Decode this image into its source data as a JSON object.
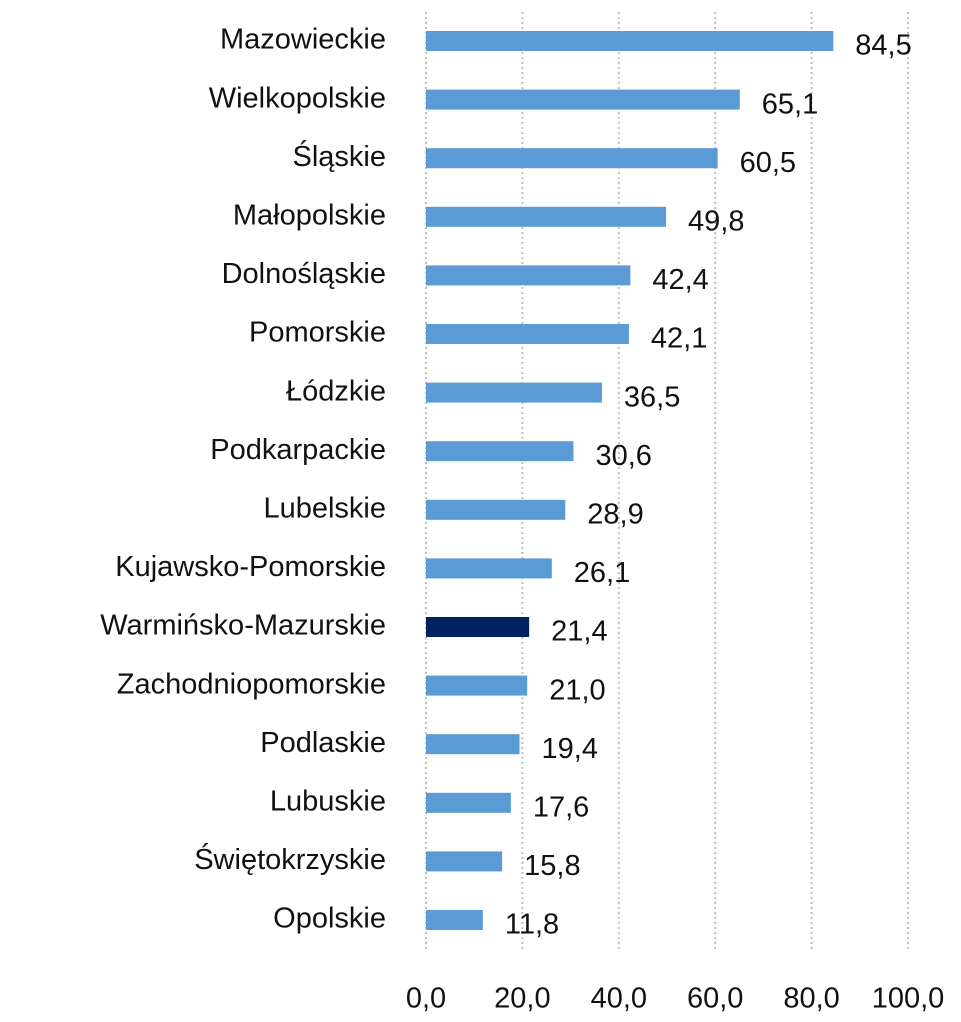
{
  "chart_data": {
    "type": "hbar",
    "categories": [
      "Mazowieckie",
      "Wielkopolskie",
      "Śląskie",
      "Małopolskie",
      "Dolnośląskie",
      "Pomorskie",
      "Łódzkie",
      "Podkarpackie",
      "Lubelskie",
      "Kujawsko-Pomorskie",
      "Warmińsko-Mazurskie",
      "Zachodniopomorskie",
      "Podlaskie",
      "Lubuskie",
      "Świętokrzyskie",
      "Opolskie"
    ],
    "values": [
      84.5,
      65.1,
      60.5,
      49.8,
      42.4,
      42.1,
      36.5,
      30.6,
      28.9,
      26.1,
      21.4,
      21.0,
      19.4,
      17.6,
      15.8,
      11.8
    ],
    "value_labels": [
      "84,5",
      "65,1",
      "60,5",
      "49,8",
      "42,4",
      "42,1",
      "36,5",
      "30,6",
      "28,9",
      "26,1",
      "21,4",
      "21,0",
      "19,4",
      "17,6",
      "15,8",
      "11,8"
    ],
    "colors": [
      "#5b9bd5",
      "#5b9bd5",
      "#5b9bd5",
      "#5b9bd5",
      "#5b9bd5",
      "#5b9bd5",
      "#5b9bd5",
      "#5b9bd5",
      "#5b9bd5",
      "#5b9bd5",
      "#002060",
      "#5b9bd5",
      "#5b9bd5",
      "#5b9bd5",
      "#5b9bd5",
      "#5b9bd5"
    ],
    "xlim": [
      0,
      100
    ],
    "xticks": [
      {
        "value": 0,
        "label": "0,0"
      },
      {
        "value": 20,
        "label": "20,0"
      },
      {
        "value": 40,
        "label": "40,0"
      },
      {
        "value": 60,
        "label": "60,0"
      },
      {
        "value": 80,
        "label": "80,0"
      },
      {
        "value": 100,
        "label": "100,0"
      }
    ],
    "grid": true
  }
}
